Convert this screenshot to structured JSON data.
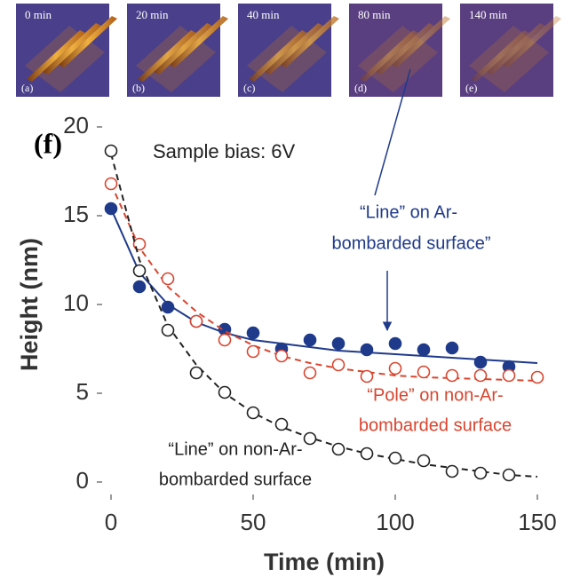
{
  "chart_data": {
    "type": "scatter",
    "panel_label": "(f)",
    "annotation": "Sample bias: 6V",
    "x_label": "Time (min)",
    "y_label": "Height (nm)",
    "insets": [
      {
        "time": "0 min",
        "label": "(a)"
      },
      {
        "time": "20 min",
        "label": "(b)"
      },
      {
        "time": "40 min",
        "label": "(c)"
      },
      {
        "time": "80 min",
        "label": "(d)"
      },
      {
        "time": "140 min",
        "label": "(e)"
      }
    ],
    "xlim": [
      -5,
      155
    ],
    "ylim": [
      -1,
      21
    ],
    "xticks": [
      0,
      50,
      100,
      150
    ],
    "yticks": [
      0,
      5,
      10,
      15,
      20
    ],
    "fit_x": [
      0,
      10,
      20,
      30,
      40,
      50,
      60,
      70,
      80,
      90,
      100,
      110,
      120,
      130,
      140,
      150
    ],
    "series": [
      {
        "label": [
          "“Line” on Ar-",
          "bombarded surface”"
        ],
        "color": "#1f3a8a",
        "marker": "filled",
        "fit_dashed": false,
        "x": [
          0,
          10,
          20,
          30,
          40,
          50,
          60,
          70,
          80,
          90,
          100,
          110,
          120,
          130,
          140
        ],
        "values": [
          15.4,
          11.0,
          9.85,
          9.05,
          8.6,
          8.4,
          7.5,
          8.0,
          7.8,
          7.45,
          7.8,
          7.45,
          7.55,
          6.75,
          6.5
        ],
        "fit": [
          15.4,
          11.8,
          10.0,
          9.0,
          8.4,
          8.0,
          7.8,
          7.6,
          7.4,
          7.3,
          7.2,
          7.1,
          7.0,
          6.9,
          6.8,
          6.7
        ]
      },
      {
        "label": [
          "“Pole” on non-Ar-",
          "bombarded surface"
        ],
        "color": "#d9452f",
        "marker": "open",
        "fit_dashed": true,
        "x": [
          0,
          10,
          20,
          30,
          40,
          50,
          60,
          70,
          80,
          90,
          100,
          110,
          120,
          130,
          140,
          150
        ],
        "values": [
          16.8,
          13.4,
          11.45,
          9.05,
          8.0,
          7.35,
          7.1,
          6.15,
          6.6,
          5.95,
          6.4,
          6.2,
          6.0,
          6.0,
          6.0,
          5.9
        ],
        "fit": [
          16.8,
          13.2,
          11.0,
          9.6,
          8.5,
          7.7,
          7.1,
          6.7,
          6.4,
          6.2,
          6.0,
          5.9,
          5.85,
          5.8,
          5.75,
          5.7
        ]
      },
      {
        "label": [
          "“Line” on non-Ar-",
          "bombarded surface"
        ],
        "color": "#222222",
        "marker": "open",
        "fit_dashed": true,
        "x": [
          0,
          10,
          20,
          30,
          40,
          50,
          60,
          70,
          80,
          90,
          100,
          110,
          120,
          130,
          140
        ],
        "values": [
          18.65,
          11.9,
          8.55,
          6.15,
          5.05,
          3.9,
          3.25,
          2.45,
          1.85,
          1.6,
          1.35,
          1.2,
          0.6,
          0.5,
          0.4
        ],
        "fit": [
          18.5,
          12.5,
          8.8,
          6.6,
          5.0,
          3.9,
          3.1,
          2.5,
          2.0,
          1.6,
          1.3,
          1.0,
          0.8,
          0.6,
          0.4,
          0.3
        ]
      }
    ]
  }
}
